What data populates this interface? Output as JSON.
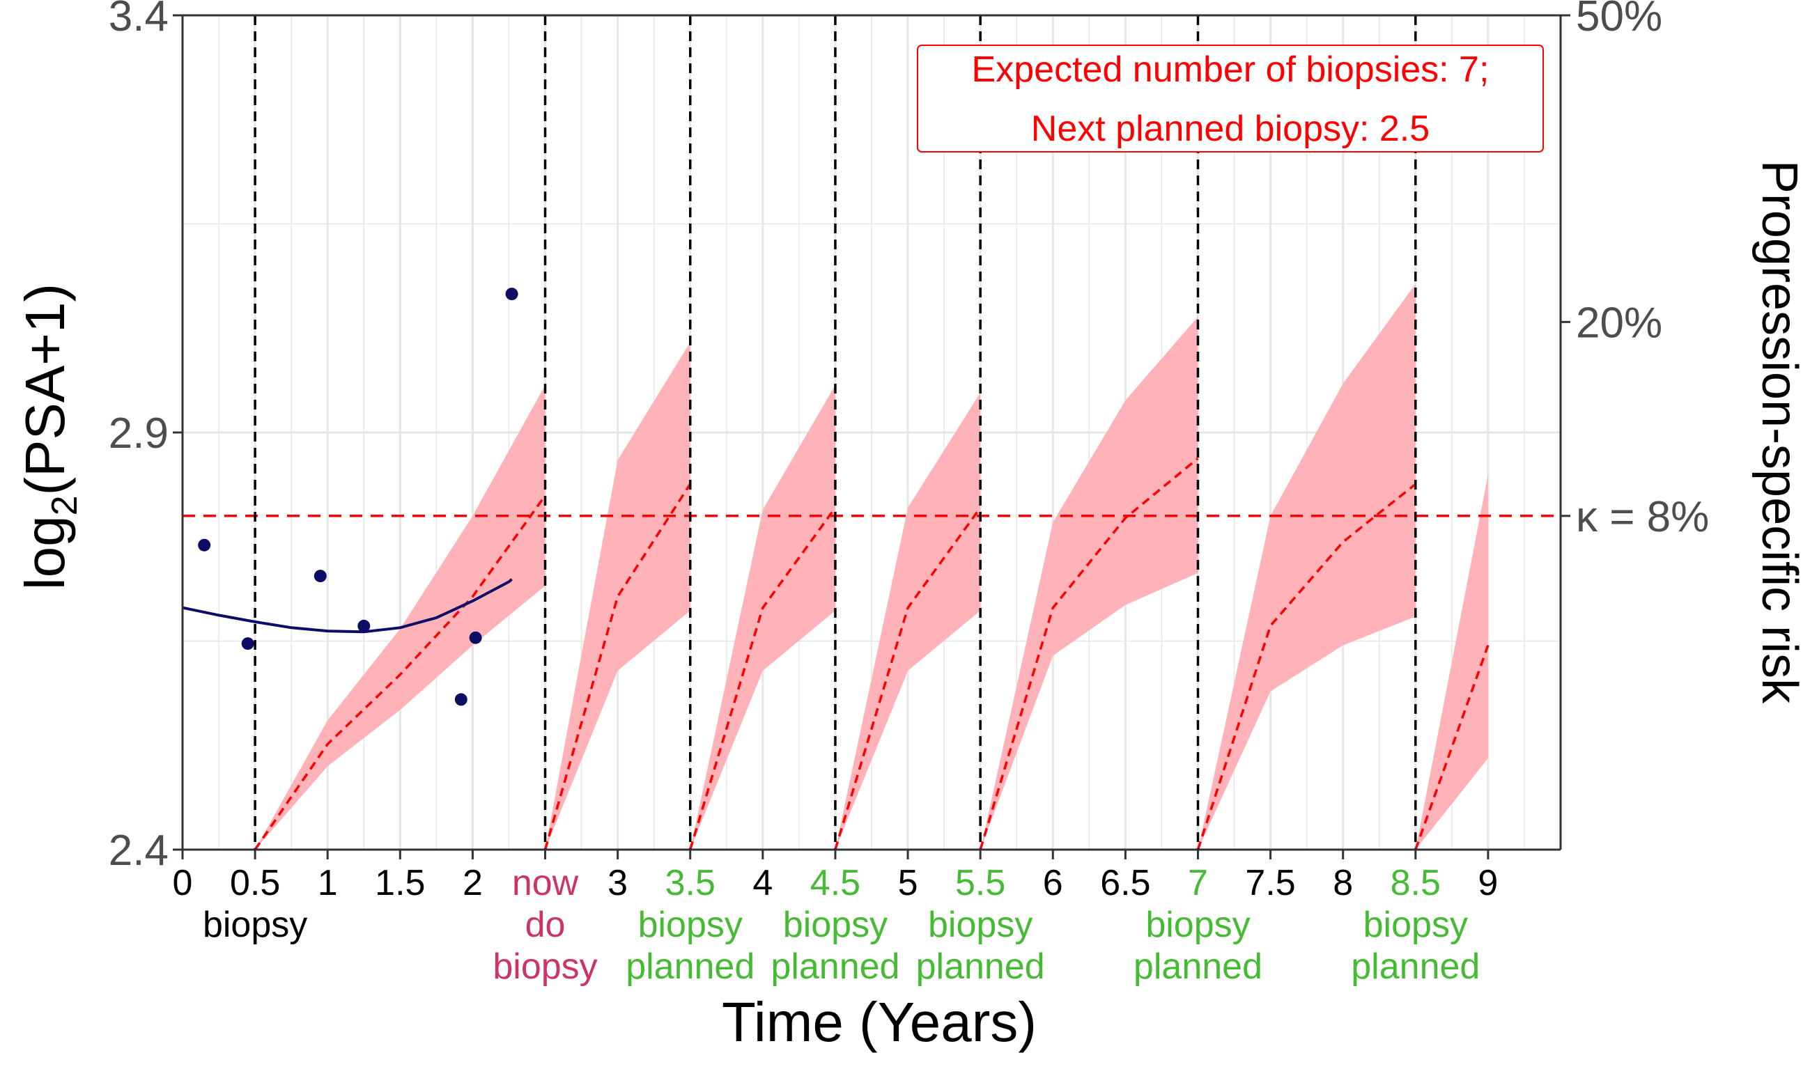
{
  "chart_data": {
    "type": "line",
    "xlabel": "Time (Years)",
    "ylabel_left": {
      "base": "log",
      "sub": "2",
      "rest": "(PSA+1)"
    },
    "ylabel_right": "Progression-specific risk",
    "xlim": [
      0,
      9.5
    ],
    "ylim_left": [
      2.4,
      3.4
    ],
    "ylim_right": [
      0,
      0.5
    ],
    "left_ticks": [
      {
        "value": 2.4,
        "label": "2.4"
      },
      {
        "value": 2.9,
        "label": "2.9"
      },
      {
        "value": 3.4,
        "label": "3.4"
      }
    ],
    "right_ticks": [
      {
        "value": 0.5,
        "label": "50%"
      },
      {
        "value": 0.2,
        "label": "20%"
      },
      {
        "value": 0.08,
        "label": "κ = 8%"
      }
    ],
    "x_ticks": [
      {
        "value": 0,
        "label": "0",
        "color": "#000000",
        "sub": []
      },
      {
        "value": 0.5,
        "label": "0.5",
        "color": "#000000",
        "sub": [
          "biopsy"
        ],
        "sub_color": "#000000"
      },
      {
        "value": 1,
        "label": "1",
        "color": "#000000",
        "sub": []
      },
      {
        "value": 1.5,
        "label": "1.5",
        "color": "#000000",
        "sub": []
      },
      {
        "value": 2,
        "label": "2",
        "color": "#000000",
        "sub": []
      },
      {
        "value": 2.5,
        "label": "now",
        "color": "#cc3366",
        "sub": [
          "do",
          "biopsy"
        ],
        "sub_color": "#cc3366"
      },
      {
        "value": 3,
        "label": "3",
        "color": "#000000",
        "sub": []
      },
      {
        "value": 3.5,
        "label": "3.5",
        "color": "#44bb33",
        "sub": [
          "biopsy",
          "planned"
        ],
        "sub_color": "#44bb33"
      },
      {
        "value": 4,
        "label": "4",
        "color": "#000000",
        "sub": []
      },
      {
        "value": 4.5,
        "label": "4.5",
        "color": "#44bb33",
        "sub": [
          "biopsy",
          "planned"
        ],
        "sub_color": "#44bb33"
      },
      {
        "value": 5,
        "label": "5",
        "color": "#000000",
        "sub": []
      },
      {
        "value": 5.5,
        "label": "5.5",
        "color": "#44bb33",
        "sub": [
          "biopsy",
          "planned"
        ],
        "sub_color": "#44bb33"
      },
      {
        "value": 6,
        "label": "6",
        "color": "#000000",
        "sub": []
      },
      {
        "value": 6.5,
        "label": "6.5",
        "color": "#000000",
        "sub": []
      },
      {
        "value": 7,
        "label": "7",
        "color": "#44bb33",
        "sub": [
          "biopsy",
          "planned"
        ],
        "sub_color": "#44bb33"
      },
      {
        "value": 7.5,
        "label": "7.5",
        "color": "#000000",
        "sub": []
      },
      {
        "value": 8,
        "label": "8",
        "color": "#000000",
        "sub": []
      },
      {
        "value": 8.5,
        "label": "8.5",
        "color": "#44bb33",
        "sub": [
          "biopsy",
          "planned"
        ],
        "sub_color": "#44bb33"
      },
      {
        "value": 9,
        "label": "9",
        "color": "#000000",
        "sub": []
      }
    ],
    "biopsy_lines": [
      0.5,
      2.5,
      3.5,
      4.5,
      5.5,
      7,
      8.5
    ],
    "psa_points": [
      {
        "x": 0.15,
        "y": 2.765
      },
      {
        "x": 0.45,
        "y": 2.647
      },
      {
        "x": 0.95,
        "y": 2.728
      },
      {
        "x": 1.25,
        "y": 2.668
      },
      {
        "x": 1.92,
        "y": 2.58
      },
      {
        "x": 2.02,
        "y": 2.654
      },
      {
        "x": 2.27,
        "y": 3.066
      }
    ],
    "psa_fit": [
      {
        "x": 0,
        "y": 2.69
      },
      {
        "x": 0.25,
        "y": 2.681
      },
      {
        "x": 0.5,
        "y": 2.673
      },
      {
        "x": 0.75,
        "y": 2.666
      },
      {
        "x": 1.0,
        "y": 2.662
      },
      {
        "x": 1.25,
        "y": 2.661
      },
      {
        "x": 1.5,
        "y": 2.666
      },
      {
        "x": 1.75,
        "y": 2.678
      },
      {
        "x": 2.0,
        "y": 2.698
      },
      {
        "x": 2.25,
        "y": 2.721
      },
      {
        "x": 2.27,
        "y": 2.724
      }
    ],
    "risk_threshold": 0.08,
    "risk_bands": [
      {
        "x": [
          0.5,
          1.0,
          1.5,
          2.0,
          2.5
        ],
        "mean": [
          0.0,
          0.008,
          0.022,
          0.046,
          0.09
        ],
        "lower": [
          0.0,
          0.005,
          0.014,
          0.03,
          0.05
        ],
        "upper": [
          0.0,
          0.012,
          0.035,
          0.08,
          0.155
        ]
      },
      {
        "x": [
          2.5,
          3.0,
          3.5
        ],
        "mean": [
          0.0,
          0.046,
          0.096
        ],
        "lower": [
          0.0,
          0.023,
          0.041
        ],
        "upper": [
          0.0,
          0.109,
          0.185
        ]
      },
      {
        "x": [
          3.5,
          4.0,
          4.5
        ],
        "mean": [
          0.0,
          0.042,
          0.084
        ],
        "lower": [
          0.0,
          0.023,
          0.041
        ],
        "upper": [
          0.0,
          0.083,
          0.155
        ]
      },
      {
        "x": [
          4.5,
          5.0,
          5.5
        ],
        "mean": [
          0.0,
          0.042,
          0.084
        ],
        "lower": [
          0.0,
          0.023,
          0.041
        ],
        "upper": [
          0.0,
          0.084,
          0.15
        ]
      },
      {
        "x": [
          5.5,
          6.0,
          6.5,
          7.0
        ],
        "mean": [
          0.0,
          0.042,
          0.079,
          0.11
        ],
        "lower": [
          0.0,
          0.027,
          0.043,
          0.055
        ],
        "upper": [
          0.0,
          0.077,
          0.145,
          0.204
        ]
      },
      {
        "x": [
          7.0,
          7.5,
          8.0,
          8.5
        ],
        "mean": [
          0.0,
          0.036,
          0.068,
          0.096
        ],
        "lower": [
          0.0,
          0.018,
          0.03,
          0.039
        ],
        "upper": [
          0.0,
          0.08,
          0.156,
          0.23
        ]
      },
      {
        "x": [
          8.5,
          9.0
        ],
        "mean": [
          0.0,
          0.03
        ],
        "lower": [
          0.0,
          0.006
        ],
        "upper": [
          0.0,
          0.101
        ]
      }
    ],
    "annotation": [
      "Expected number of biopsies: 7;",
      "Next planned biopsy: 2.5"
    ],
    "grid": true,
    "colors": {
      "psa_points": "#0d0d66",
      "psa_fit": "#0d0d66",
      "risk_band": "#ffb3b8",
      "risk_mean": "#ff0000",
      "threshold": "#ff0000",
      "biopsy_line": "#000000",
      "annotation": "#ff0000",
      "grid": "#e6e6e6"
    }
  }
}
